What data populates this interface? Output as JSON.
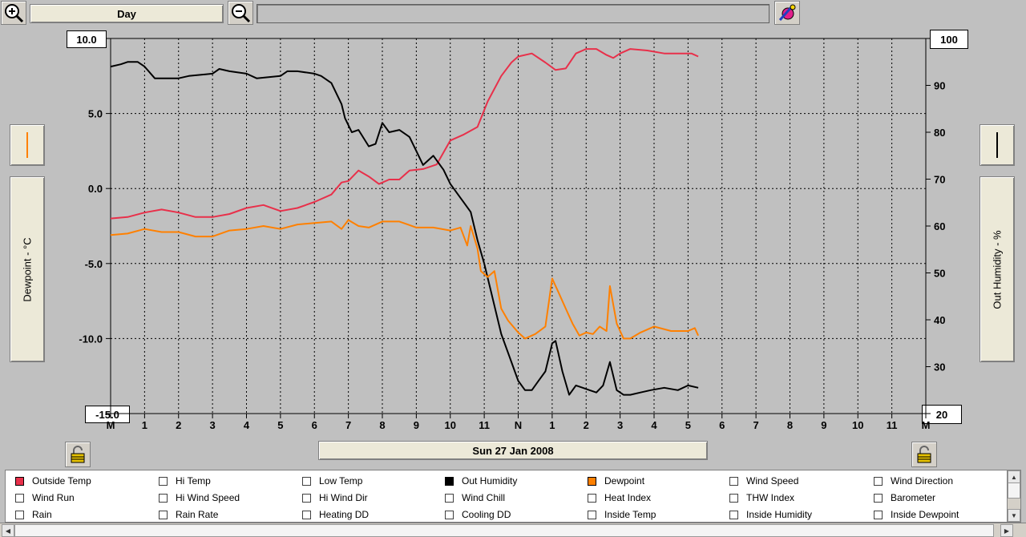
{
  "toolbar": {
    "zoom_in_icon": "zoom-in-icon",
    "zoom_out_icon": "zoom-out-icon",
    "timespan": "Day",
    "properties_icon": "color-palette-icon"
  },
  "left_axis": {
    "label": "Dewpoint - °C",
    "max_value": "10.0",
    "min_value": "-15.0",
    "color": "#ff8000"
  },
  "right_axis": {
    "label": "Out Humidity - %",
    "max_value": "100",
    "min_value": "20",
    "color": "#000000"
  },
  "date_label": "Sun 27 Jan 2008",
  "legend": [
    {
      "label": "Outside Temp",
      "checked": true,
      "color": "#e8304a"
    },
    {
      "label": "Hi Temp",
      "checked": false
    },
    {
      "label": "Low Temp",
      "checked": false
    },
    {
      "label": "Out Humidity",
      "checked": true,
      "color": "#000000"
    },
    {
      "label": "Dewpoint",
      "checked": true,
      "color": "#ff8000"
    },
    {
      "label": "Wind Speed",
      "checked": false
    },
    {
      "label": "Wind Direction",
      "checked": false
    },
    {
      "label": "Wind Run",
      "checked": false
    },
    {
      "label": "Hi Wind Speed",
      "checked": false
    },
    {
      "label": "Hi Wind Dir",
      "checked": false
    },
    {
      "label": "Wind Chill",
      "checked": false
    },
    {
      "label": "Heat Index",
      "checked": false
    },
    {
      "label": "THW Index",
      "checked": false
    },
    {
      "label": "Barometer",
      "checked": false
    },
    {
      "label": "Rain",
      "checked": false
    },
    {
      "label": "Rain Rate",
      "checked": false
    },
    {
      "label": "Heating DD",
      "checked": false
    },
    {
      "label": "Cooling DD",
      "checked": false
    },
    {
      "label": "Inside Temp",
      "checked": false
    },
    {
      "label": "Inside Humidity",
      "checked": false
    },
    {
      "label": "Inside Dewpoint",
      "checked": false
    }
  ],
  "chart_data": {
    "type": "line",
    "x_ticks": [
      "M",
      "1",
      "2",
      "3",
      "4",
      "5",
      "6",
      "7",
      "8",
      "9",
      "10",
      "11",
      "N",
      "1",
      "2",
      "3",
      "4",
      "5",
      "6",
      "7",
      "8",
      "9",
      "10",
      "11",
      "M"
    ],
    "left_ticks": [
      "10.0",
      "5.0",
      "0.0",
      "-5.0",
      "-10.0",
      "-15.0"
    ],
    "right_ticks": [
      "100",
      "90",
      "80",
      "70",
      "60",
      "50",
      "40",
      "30",
      "20"
    ],
    "ylim_left": [
      -15,
      10
    ],
    "ylim_right": [
      20,
      100
    ],
    "grid": true,
    "series": [
      {
        "name": "Outside Temp",
        "axis": "left",
        "color": "#e8304a",
        "points": [
          [
            0,
            -2.0
          ],
          [
            0.5,
            -1.9
          ],
          [
            1,
            -1.6
          ],
          [
            1.5,
            -1.4
          ],
          [
            2,
            -1.6
          ],
          [
            2.5,
            -1.9
          ],
          [
            3,
            -1.9
          ],
          [
            3.5,
            -1.7
          ],
          [
            4,
            -1.3
          ],
          [
            4.5,
            -1.1
          ],
          [
            5,
            -1.5
          ],
          [
            5.5,
            -1.3
          ],
          [
            6,
            -0.9
          ],
          [
            6.5,
            -0.4
          ],
          [
            6.8,
            0.4
          ],
          [
            7,
            0.5
          ],
          [
            7.3,
            1.2
          ],
          [
            7.6,
            0.8
          ],
          [
            7.9,
            0.3
          ],
          [
            8.2,
            0.6
          ],
          [
            8.5,
            0.6
          ],
          [
            8.8,
            1.2
          ],
          [
            9.2,
            1.3
          ],
          [
            9.6,
            1.6
          ],
          [
            10,
            3.2
          ],
          [
            10.4,
            3.6
          ],
          [
            10.8,
            4.1
          ],
          [
            11.1,
            5.8
          ],
          [
            11.5,
            7.5
          ],
          [
            11.8,
            8.4
          ],
          [
            12,
            8.8
          ],
          [
            12.4,
            9.0
          ],
          [
            12.8,
            8.4
          ],
          [
            13.1,
            7.9
          ],
          [
            13.4,
            8.0
          ],
          [
            13.7,
            9.0
          ],
          [
            14,
            9.3
          ],
          [
            14.3,
            9.3
          ],
          [
            14.6,
            8.9
          ],
          [
            14.8,
            8.7
          ],
          [
            15,
            9.0
          ],
          [
            15.3,
            9.3
          ],
          [
            15.8,
            9.2
          ],
          [
            16.3,
            9.0
          ],
          [
            16.8,
            9.0
          ],
          [
            17.1,
            9.0
          ],
          [
            17.3,
            8.8
          ]
        ]
      },
      {
        "name": "Out Humidity",
        "axis": "right",
        "color": "#000000",
        "points": [
          [
            0,
            94
          ],
          [
            0.3,
            94.5
          ],
          [
            0.5,
            95
          ],
          [
            0.8,
            95
          ],
          [
            1,
            94
          ],
          [
            1.3,
            91.5
          ],
          [
            2,
            91.5
          ],
          [
            2.3,
            92
          ],
          [
            3,
            92.5
          ],
          [
            3.2,
            93.5
          ],
          [
            3.5,
            93
          ],
          [
            4,
            92.5
          ],
          [
            4.3,
            91.5
          ],
          [
            5,
            92
          ],
          [
            5.2,
            93
          ],
          [
            5.5,
            93
          ],
          [
            6,
            92.5
          ],
          [
            6.2,
            92
          ],
          [
            6.5,
            90.5
          ],
          [
            6.8,
            86
          ],
          [
            6.9,
            83
          ],
          [
            7.1,
            80
          ],
          [
            7.3,
            80.5
          ],
          [
            7.6,
            77
          ],
          [
            7.8,
            77.5
          ],
          [
            8,
            82
          ],
          [
            8.2,
            80
          ],
          [
            8.5,
            80.5
          ],
          [
            8.8,
            79
          ],
          [
            9.0,
            76
          ],
          [
            9.2,
            73
          ],
          [
            9.5,
            75
          ],
          [
            9.8,
            72
          ],
          [
            10,
            69
          ],
          [
            10.3,
            66
          ],
          [
            10.6,
            63
          ],
          [
            10.8,
            57
          ],
          [
            11.0,
            52
          ],
          [
            11.2,
            46
          ],
          [
            11.5,
            37
          ],
          [
            11.8,
            31
          ],
          [
            12,
            27
          ],
          [
            12.2,
            25
          ],
          [
            12.4,
            25
          ],
          [
            12.6,
            27
          ],
          [
            12.8,
            29
          ],
          [
            13.0,
            35
          ],
          [
            13.1,
            35.5
          ],
          [
            13.3,
            29
          ],
          [
            13.5,
            24
          ],
          [
            13.7,
            26
          ],
          [
            13.9,
            25.5
          ],
          [
            14.1,
            25
          ],
          [
            14.3,
            24.5
          ],
          [
            14.5,
            26
          ],
          [
            14.7,
            31
          ],
          [
            14.9,
            25
          ],
          [
            15.1,
            24
          ],
          [
            15.3,
            24
          ],
          [
            15.6,
            24.5
          ],
          [
            15.9,
            25
          ],
          [
            16.3,
            25.5
          ],
          [
            16.7,
            25
          ],
          [
            17.0,
            26
          ],
          [
            17.3,
            25.5
          ]
        ]
      },
      {
        "name": "Dewpoint",
        "axis": "left",
        "color": "#ff8000",
        "points": [
          [
            0,
            -3.1
          ],
          [
            0.5,
            -3.0
          ],
          [
            1,
            -2.7
          ],
          [
            1.5,
            -2.9
          ],
          [
            2,
            -2.9
          ],
          [
            2.5,
            -3.2
          ],
          [
            3,
            -3.2
          ],
          [
            3.5,
            -2.8
          ],
          [
            4,
            -2.7
          ],
          [
            4.5,
            -2.5
          ],
          [
            5,
            -2.7
          ],
          [
            5.5,
            -2.4
          ],
          [
            6,
            -2.3
          ],
          [
            6.5,
            -2.2
          ],
          [
            6.8,
            -2.7
          ],
          [
            7,
            -2.1
          ],
          [
            7.3,
            -2.5
          ],
          [
            7.6,
            -2.6
          ],
          [
            8,
            -2.2
          ],
          [
            8.5,
            -2.2
          ],
          [
            9,
            -2.6
          ],
          [
            9.5,
            -2.6
          ],
          [
            10,
            -2.8
          ],
          [
            10.3,
            -2.6
          ],
          [
            10.5,
            -3.8
          ],
          [
            10.6,
            -2.5
          ],
          [
            10.8,
            -4.0
          ],
          [
            10.9,
            -5.5
          ],
          [
            11.1,
            -5.9
          ],
          [
            11.3,
            -5.5
          ],
          [
            11.5,
            -8.0
          ],
          [
            11.7,
            -8.8
          ],
          [
            12,
            -9.6
          ],
          [
            12.2,
            -10.0
          ],
          [
            12.5,
            -9.7
          ],
          [
            12.8,
            -9.2
          ],
          [
            13.0,
            -6.0
          ],
          [
            13.2,
            -7.0
          ],
          [
            13.4,
            -8.0
          ],
          [
            13.6,
            -9.0
          ],
          [
            13.8,
            -9.8
          ],
          [
            14.0,
            -9.6
          ],
          [
            14.2,
            -9.7
          ],
          [
            14.4,
            -9.2
          ],
          [
            14.6,
            -9.5
          ],
          [
            14.7,
            -6.5
          ],
          [
            14.9,
            -9.0
          ],
          [
            15.1,
            -10.0
          ],
          [
            15.3,
            -10.0
          ],
          [
            15.6,
            -9.6
          ],
          [
            16,
            -9.2
          ],
          [
            16.5,
            -9.5
          ],
          [
            17.0,
            -9.5
          ],
          [
            17.2,
            -9.3
          ],
          [
            17.3,
            -9.8
          ]
        ]
      }
    ]
  }
}
